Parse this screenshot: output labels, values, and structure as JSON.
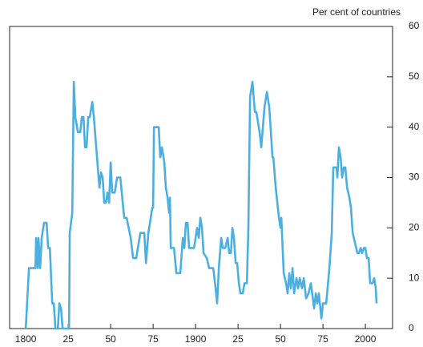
{
  "chart_data": {
    "type": "line",
    "y_axis_label": "Per cent of countries",
    "x": [
      1800,
      1801.9,
      1805.7,
      1806.1,
      1807.1,
      1807.5,
      1808.5,
      1809.4,
      1810.8,
      1812.3,
      1813.2,
      1814.2,
      1815.6,
      1816.5,
      1817.5,
      1818.9,
      1819.8,
      1820.8,
      1821.7,
      1825.5,
      1825.9,
      1827.4,
      1828.3,
      1829.2,
      1830.7,
      1832.1,
      1833,
      1834,
      1834.9,
      1835.8,
      1836.8,
      1837.7,
      1839.2,
      1840.1,
      1841.5,
      1842.9,
      1843.4,
      1844.3,
      1845.3,
      1846.2,
      1847.2,
      1848.1,
      1849.1,
      1850,
      1850.9,
      1852.4,
      1853.8,
      1855.7,
      1857.1,
      1858,
      1859.4,
      1861.8,
      1863.2,
      1865.1,
      1866,
      1867.5,
      1869.8,
      1870.8,
      1872.2,
      1873.6,
      1874.5,
      1875,
      1875.5,
      1878.3,
      1879.2,
      1880.2,
      1881.6,
      1882.5,
      1883.5,
      1884.4,
      1884.9,
      1885.4,
      1887.3,
      1888.7,
      1891,
      1892.5,
      1893.4,
      1894.3,
      1895.3,
      1896.2,
      1899.1,
      1900,
      1900.9,
      1901.9,
      1902.8,
      1903.8,
      1904.7,
      1906.6,
      1908,
      1910.4,
      1911.8,
      1912.7,
      1913.7,
      1915.1,
      1916,
      1917.5,
      1918.9,
      1919.8,
      1920.8,
      1921.7,
      1922.6,
      1923.6,
      1924.5,
      1925.5,
      1926.4,
      1927.8,
      1928.8,
      1930.2,
      1931.1,
      1932.1,
      1933.5,
      1934.9,
      1935.8,
      1937.7,
      1938.7,
      1940.6,
      1942,
      1943.4,
      1945.3,
      1945.8,
      1947.2,
      1949.1,
      1950,
      1950.5,
      1951.9,
      1953.3,
      1954.2,
      1955.2,
      1956.1,
      1957.1,
      1958,
      1959.4,
      1960.4,
      1961.3,
      1962.7,
      1963.7,
      1965.1,
      1966.5,
      1967.9,
      1969.8,
      1970.8,
      1971.7,
      1972.6,
      1974.1,
      1975,
      1976.9,
      1978.8,
      1980.2,
      1981.1,
      1983,
      1983.5,
      1984.4,
      1985.4,
      1986.3,
      1987.3,
      1988.2,
      1989.2,
      1990.6,
      1991.5,
      1992.5,
      1993.9,
      1995.3,
      1996.2,
      1997.2,
      1998.1,
      1999.1,
      2000,
      2000.9,
      2001.9,
      2002.8,
      2004.2,
      2005.2,
      2006.1,
      2006.6
    ],
    "series": [
      {
        "color": "#4bb0e1",
        "values": [
          0,
          12,
          12,
          18,
          12,
          18,
          12,
          18,
          21,
          21,
          16,
          16,
          5,
          5,
          0,
          0,
          5,
          4,
          0,
          0,
          19,
          23,
          49,
          42,
          39,
          39,
          42,
          42,
          36,
          36,
          42,
          42,
          45,
          42,
          36,
          30,
          28,
          31,
          30,
          25,
          25,
          27,
          25,
          33,
          27,
          27,
          30,
          30,
          25,
          22,
          22,
          18,
          14,
          14,
          16,
          19,
          19,
          13,
          19,
          22,
          24,
          24,
          40,
          40,
          34,
          36,
          33,
          28,
          26,
          23,
          26,
          16,
          16,
          11,
          11,
          18,
          16,
          21,
          21,
          16,
          16,
          18,
          20,
          18,
          22,
          20,
          15,
          14,
          12,
          12,
          8,
          5,
          12,
          18,
          16,
          16,
          18,
          15,
          15,
          20,
          18,
          13,
          13,
          9,
          7,
          7,
          9,
          9,
          20,
          46,
          49,
          43,
          43,
          39,
          36,
          44,
          47,
          44,
          34,
          34,
          28,
          22,
          20,
          22,
          11,
          9,
          7,
          11,
          8,
          12,
          7,
          10,
          8,
          10,
          8,
          10,
          6,
          7,
          9,
          4,
          7,
          5,
          7,
          2,
          5,
          5,
          12,
          19,
          32,
          32,
          30,
          36,
          34,
          30,
          32,
          32,
          28,
          26,
          24,
          19,
          17,
          15,
          15,
          16,
          15,
          16,
          16,
          14,
          14,
          9,
          9,
          10,
          8,
          5
        ]
      }
    ],
    "xlim": [
      1790.5,
      2016
    ],
    "xticks": [
      1800,
      {
        "value": 1825,
        "label": "25"
      },
      {
        "value": 1850,
        "label": "50"
      },
      {
        "value": 1875,
        "label": "75"
      },
      1900,
      {
        "value": 1925,
        "label": "25"
      },
      {
        "value": 1950,
        "label": "50"
      },
      {
        "value": 1975,
        "label": "75"
      },
      2000
    ],
    "ylim": [
      0,
      60
    ],
    "yticks": [
      0,
      10,
      20,
      30,
      40,
      50,
      60
    ],
    "y_axis_side": "right"
  }
}
